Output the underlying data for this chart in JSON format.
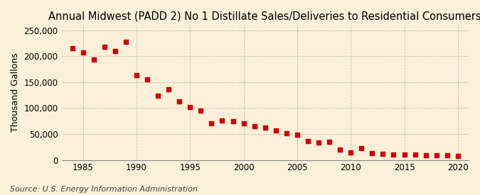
{
  "title": "Annual Midwest (PADD 2) No 1 Distillate Sales/Deliveries to Residential Consumers",
  "ylabel": "Thousand Gallons",
  "source": "Source: U.S. Energy Information Administration",
  "background_color": "#faefd8",
  "plot_background_color": "#faefd8",
  "marker_color": "#cc0000",
  "years": [
    1984,
    1985,
    1986,
    1987,
    1988,
    1989,
    1990,
    1991,
    1992,
    1993,
    1994,
    1995,
    1996,
    1997,
    1998,
    1999,
    2000,
    2001,
    2002,
    2003,
    2004,
    2005,
    2006,
    2007,
    2008,
    2009,
    2010,
    2011,
    2012,
    2013,
    2014,
    2015,
    2016,
    2017,
    2018,
    2019,
    2020
  ],
  "values": [
    215000,
    207000,
    193000,
    218000,
    210000,
    228000,
    164000,
    155000,
    124000,
    136000,
    113000,
    102000,
    95000,
    71000,
    76000,
    74000,
    70000,
    65000,
    63000,
    57000,
    51000,
    49000,
    37000,
    33000,
    35000,
    20000,
    15000,
    23000,
    13000,
    12000,
    11000,
    11000,
    10000,
    9000,
    9000,
    9000,
    8000
  ],
  "ylim": [
    0,
    260000
  ],
  "xlim": [
    1983,
    2021
  ],
  "yticks": [
    0,
    50000,
    100000,
    150000,
    200000,
    250000
  ],
  "xticks": [
    1985,
    1990,
    1995,
    2000,
    2005,
    2010,
    2015,
    2020
  ],
  "grid_color": "#aaaaaa",
  "title_fontsize": 10.5,
  "label_fontsize": 9,
  "tick_fontsize": 8.5,
  "source_fontsize": 8
}
